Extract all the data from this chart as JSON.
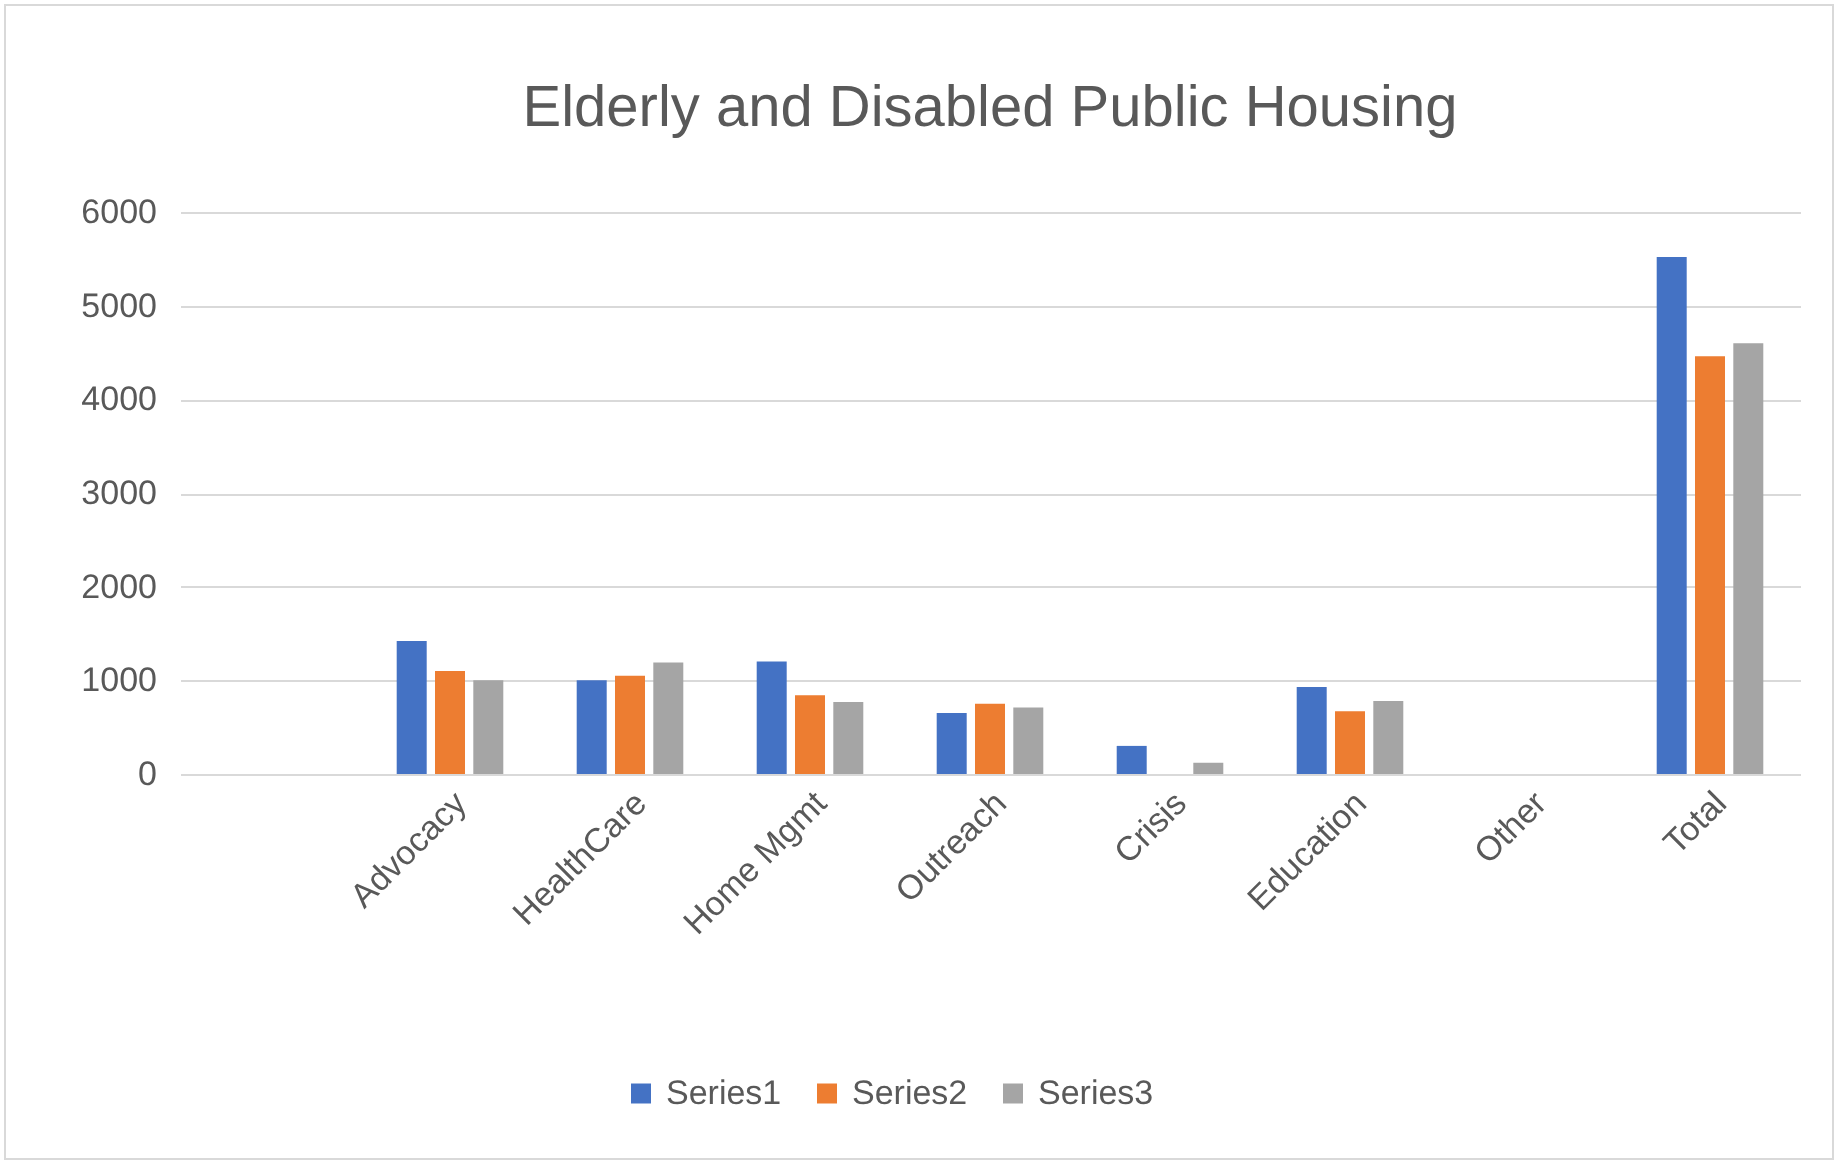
{
  "chart_data": {
    "type": "bar",
    "title": "Elderly and Disabled Public Housing",
    "categories": [
      null,
      "Advocacy",
      "HealthCare",
      "Home Mgmt",
      "Outreach",
      "Crisis",
      "Education",
      "Other",
      "Total"
    ],
    "series": [
      {
        "name": "Series1",
        "color": "#4472c4",
        "values": [
          null,
          1420,
          1000,
          1200,
          650,
          300,
          930,
          0,
          5520
        ]
      },
      {
        "name": "Series2",
        "color": "#ed7d31",
        "values": [
          null,
          1100,
          1050,
          840,
          750,
          0,
          670,
          0,
          4460
        ]
      },
      {
        "name": "Series3",
        "color": "#a5a5a5",
        "values": [
          null,
          1000,
          1190,
          770,
          710,
          120,
          780,
          0,
          4600
        ]
      }
    ],
    "ylim": [
      0,
      6000
    ],
    "yticks": [
      0,
      1000,
      2000,
      3000,
      4000,
      5000,
      6000
    ],
    "grid": "y",
    "legend": "bottom"
  }
}
